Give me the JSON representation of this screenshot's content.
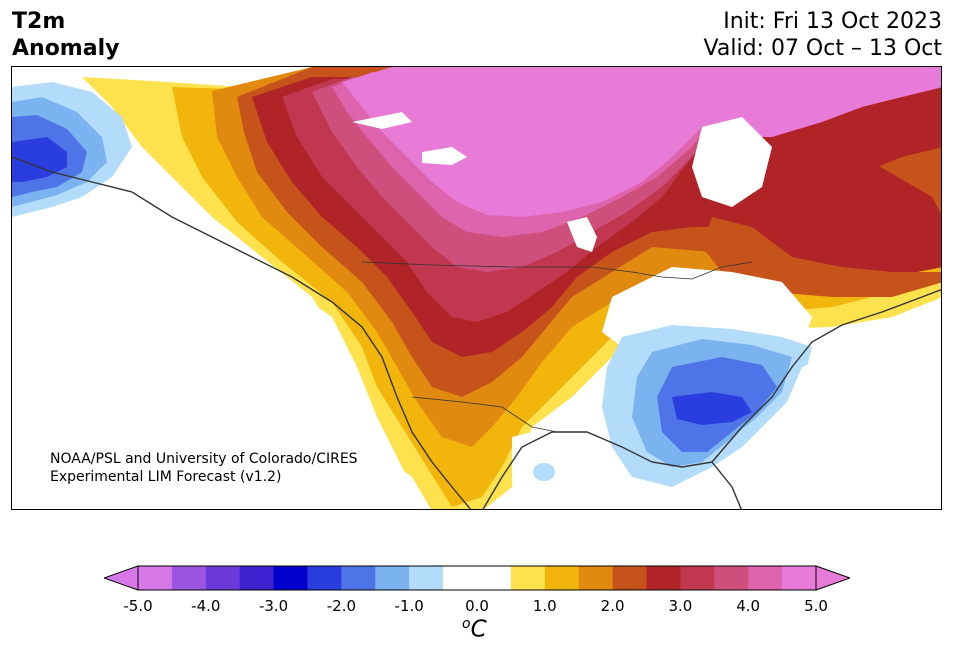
{
  "header": {
    "title_line1": "T2m",
    "title_line2": "Anomaly",
    "init": "Init: Fri 13 Oct 2023",
    "valid": "Valid: 07 Oct – 13 Oct"
  },
  "credit": {
    "line1": "NOAA/PSL and University of Colorado/CIRES",
    "line2": "Experimental LIM Forecast (v1.2)"
  },
  "colorbar": {
    "ticks": [
      "-5.0",
      "-4.0",
      "-3.0",
      "-2.0",
      "-1.0",
      "0.0",
      "1.0",
      "2.0",
      "3.0",
      "4.0",
      "5.0"
    ],
    "unit_sup": "o",
    "unit_main": "C",
    "colors": [
      "#d877e8",
      "#9b55e0",
      "#6b3ad8",
      "#3d22d0",
      "#0000cc",
      "#2a3ee0",
      "#4e74e8",
      "#7bb2f0",
      "#b2dcfa",
      "#ffffff",
      "#ffffff",
      "#fde24e",
      "#f2b50b",
      "#e08a10",
      "#c6531a",
      "#b02428",
      "#c0374f",
      "#cf4f7c",
      "#de64ad",
      "#e87ad8"
    ],
    "range": [
      -5.0,
      5.0
    ],
    "extend": "both"
  },
  "map": {
    "region": "North America",
    "palette": {
      "pink_max": "#e87ad8",
      "magenta": "#de64ad",
      "rose": "#cf4f7c",
      "crimson": "#c0374f",
      "red": "#b02428",
      "rust": "#c6531a",
      "orange": "#e08a10",
      "amber": "#f2b50b",
      "yellow": "#fde24e",
      "neutral": "#ffffff",
      "light_blue": "#b2dcfa",
      "sky_blue": "#7bb2f0",
      "blue": "#4e74e8",
      "deep_blue": "#2a3ee0",
      "coast": "#333333"
    }
  }
}
